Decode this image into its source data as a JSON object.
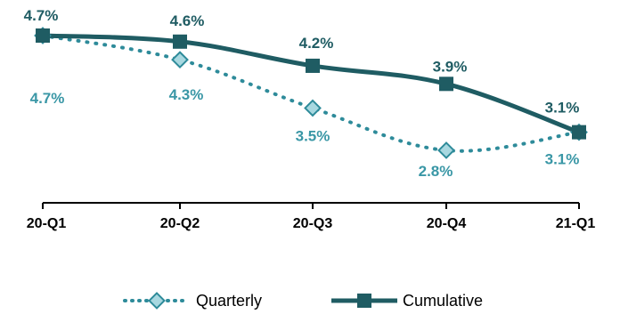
{
  "chart_data": {
    "type": "line",
    "categories": [
      "20-Q1",
      "20-Q2",
      "20-Q3",
      "20-Q4",
      "21-Q1"
    ],
    "ylim": [
      2.0,
      5.0
    ],
    "grid": false,
    "legend_position": "bottom",
    "series": [
      {
        "name": "Quarterly",
        "values": [
          4.7,
          4.3,
          3.5,
          2.8,
          3.1
        ],
        "labels": [
          "4.7%",
          "4.3%",
          "3.5%",
          "2.8%",
          "3.1%"
        ],
        "color": "#2E8B9A",
        "marker": "diamond",
        "style": "dotted"
      },
      {
        "name": "Cumulative",
        "values": [
          4.7,
          4.6,
          4.2,
          3.9,
          3.1
        ],
        "labels": [
          "4.7%",
          "4.6%",
          "4.2%",
          "3.9%",
          "3.1%"
        ],
        "color": "#1F5C63",
        "marker": "square",
        "style": "solid"
      }
    ]
  }
}
